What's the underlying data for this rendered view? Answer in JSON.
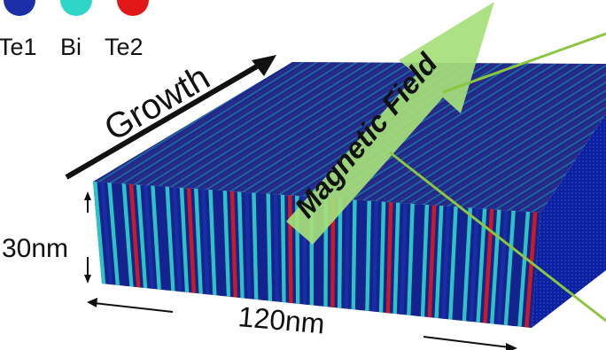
{
  "legend": {
    "items": [
      {
        "label": "Te1",
        "color": "#1a2fa8"
      },
      {
        "label": "Bi",
        "color": "#2fd6c8"
      },
      {
        "label": "Te2",
        "color": "#e01818"
      }
    ]
  },
  "labels": {
    "growth": "Growth",
    "magnetic_field": "Magnetic Field",
    "thickness": "30nm",
    "width": "120nm"
  },
  "colors": {
    "top_face": "#1b2a8c",
    "side_face": "#0d1f9c",
    "front_face": "#15238f",
    "arrow": "#a6e07a",
    "pointer": "#8cc63f",
    "text": "#111111"
  }
}
